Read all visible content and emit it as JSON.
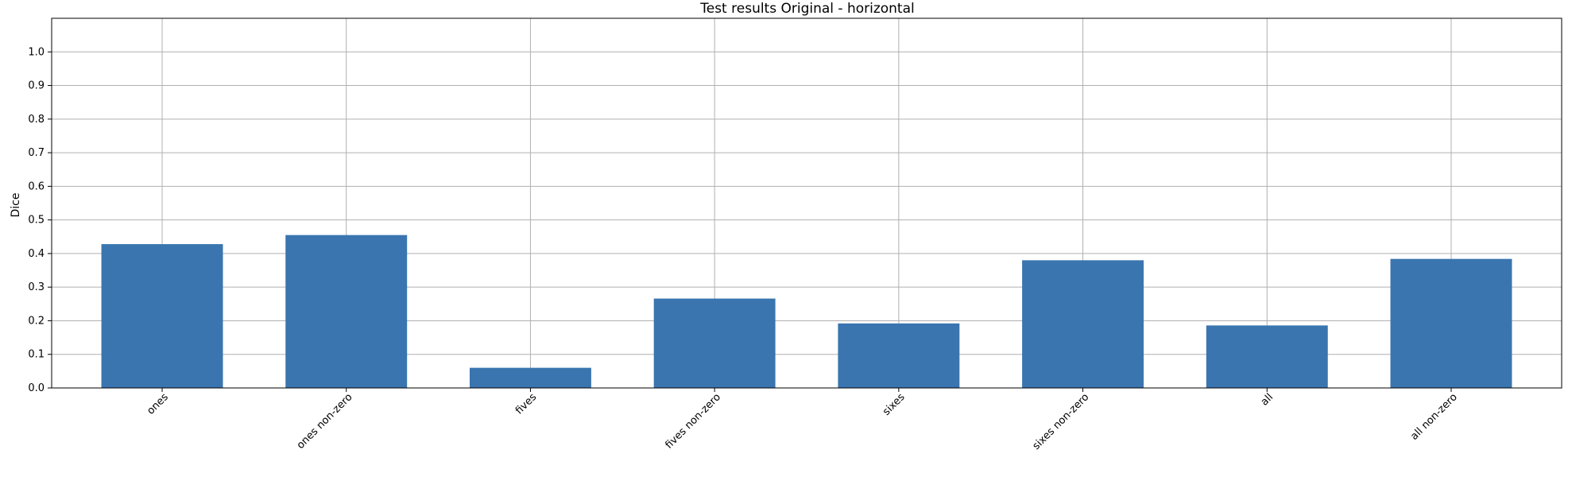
{
  "chart_data": {
    "type": "bar",
    "title": "Test results Original - horizontal",
    "xlabel": "",
    "ylabel": "Dice",
    "ylim": [
      0,
      1.1
    ],
    "yticks": [
      0.0,
      0.1,
      0.2,
      0.3,
      0.4,
      0.5,
      0.6,
      0.7,
      0.8,
      0.9,
      1.0
    ],
    "ytick_labels": [
      "0.0",
      "0.1",
      "0.2",
      "0.3",
      "0.4",
      "0.5",
      "0.6",
      "0.7",
      "0.8",
      "0.9",
      "1.0"
    ],
    "categories": [
      "ones",
      "ones non-zero",
      "fives",
      "fives non-zero",
      "sixes",
      "sixes non-zero",
      "all",
      "all non-zero"
    ],
    "values": [
      0.428,
      0.455,
      0.06,
      0.266,
      0.192,
      0.38,
      0.186,
      0.384
    ],
    "grid": true,
    "bar_color": "#3a75af"
  }
}
